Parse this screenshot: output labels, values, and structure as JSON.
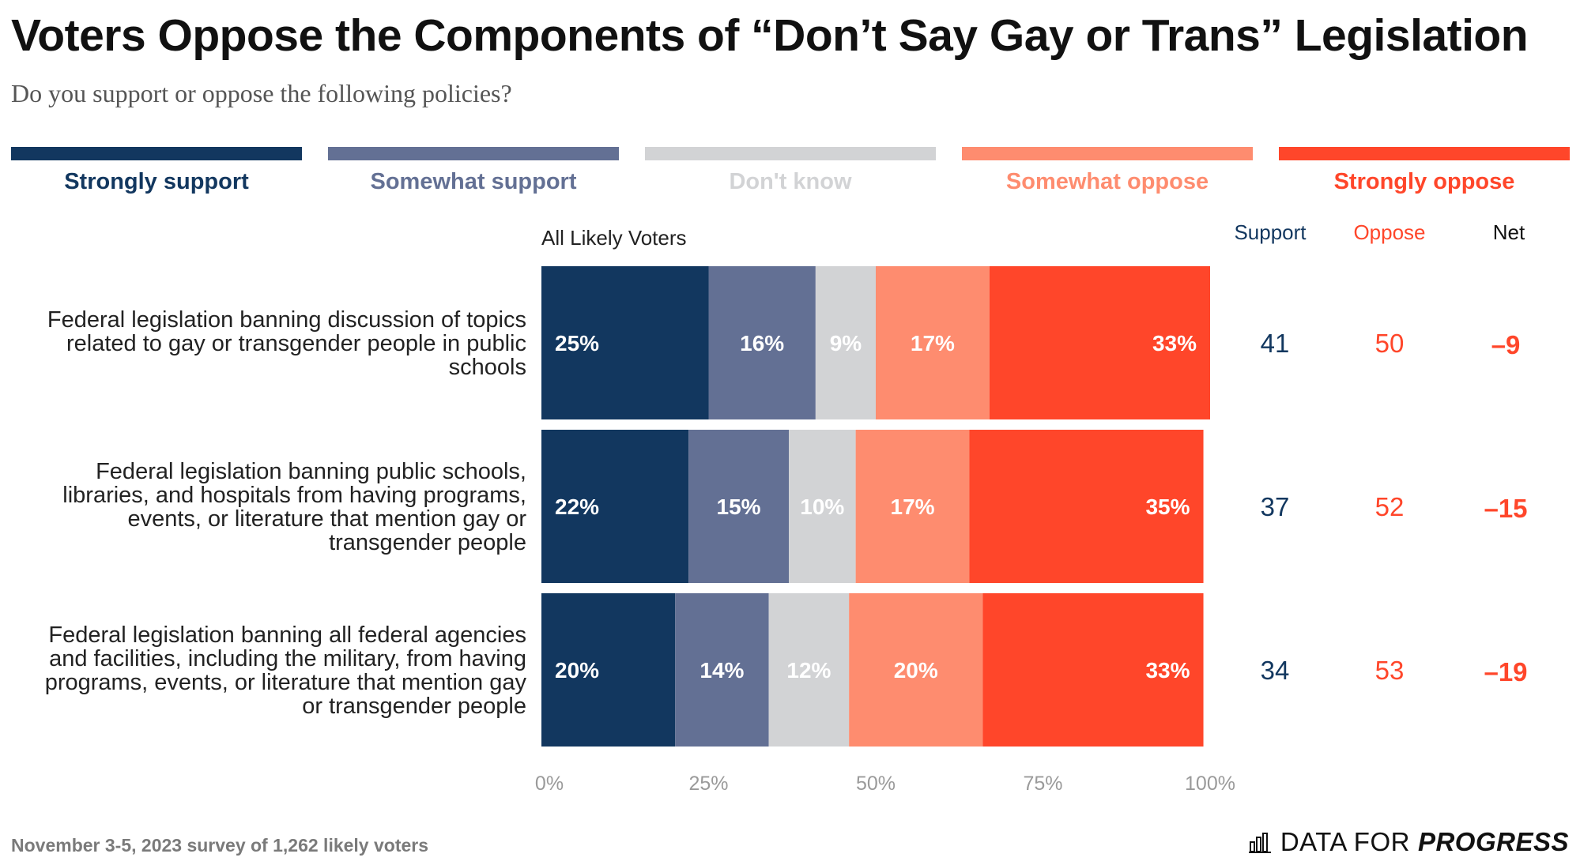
{
  "header": {
    "title": "Voters Oppose the Components of “Don’t Say Gay or Trans” Legislation",
    "subtitle": "Do you support or oppose the following policies?"
  },
  "legend": [
    {
      "label": "Strongly support",
      "color": "#12375f",
      "text_color": "#12375f"
    },
    {
      "label": "Somewhat support",
      "color": "#637094",
      "text_color": "#637094"
    },
    {
      "label": "Don't know",
      "color": "#d2d3d5",
      "text_color": "#d2d3d5"
    },
    {
      "label": "Somewhat oppose",
      "color": "#fe8c6f",
      "text_color": "#fe8c6f"
    },
    {
      "label": "Strongly oppose",
      "color": "#ff462a",
      "text_color": "#ff462a"
    }
  ],
  "chart_data": {
    "type": "bar",
    "orientation": "horizontal",
    "stacked": true,
    "group_label": "All Likely Voters",
    "categories": [
      "Federal legislation banning discussion of topics related to gay or transgender people in public schools",
      "Federal legislation banning public schools, libraries, and hospitals from having programs, events, or literature that mention gay or transgender people",
      "Federal legislation banning all federal agencies and facilities, including the military, from having programs, events, or literature that mention gay or transgender people"
    ],
    "category_lines": [
      [
        "Federal legislation banning discussion of topics",
        "related to gay or transgender people in public",
        "schools"
      ],
      [
        "Federal legislation banning public schools,",
        "libraries, and hospitals from having programs,",
        "events, or literature that mention gay or",
        "transgender people"
      ],
      [
        "Federal legislation banning all federal agencies",
        "and facilities, including the military, from having",
        "programs, events, or literature that mention gay",
        "or transgender people"
      ]
    ],
    "series": [
      {
        "name": "Strongly support",
        "values": [
          25,
          22,
          20
        ],
        "labels": [
          "25%",
          "22%",
          "20%"
        ]
      },
      {
        "name": "Somewhat support",
        "values": [
          16,
          15,
          14
        ],
        "labels": [
          "16%",
          "15%",
          "14%"
        ]
      },
      {
        "name": "Don't know",
        "values": [
          9,
          10,
          12
        ],
        "labels": [
          "9%",
          "10%",
          "12%"
        ]
      },
      {
        "name": "Somewhat oppose",
        "values": [
          17,
          17,
          20
        ],
        "labels": [
          "17%",
          "17%",
          "20%"
        ]
      },
      {
        "name": "Strongly oppose",
        "values": [
          33,
          35,
          33
        ],
        "labels": [
          "33%",
          "35%",
          "33%"
        ]
      }
    ],
    "xlim": [
      0,
      100
    ],
    "x_ticks": [
      "0%",
      "25%",
      "50%",
      "75%",
      "100%"
    ],
    "summary_columns": {
      "support": {
        "label": "Support",
        "values": [
          "41",
          "37",
          "34"
        ],
        "color": "#12375f"
      },
      "oppose": {
        "label": "Oppose",
        "values": [
          "50",
          "52",
          "53"
        ],
        "color": "#ff462a"
      },
      "net": {
        "label": "Net",
        "values": [
          "–9",
          "–15",
          "–19"
        ],
        "header_color": "#111111",
        "color": "#ff462a"
      }
    },
    "legend_position": "top",
    "grid": false
  },
  "footer": {
    "note": "November 3-5, 2023 survey of 1,262 likely voters",
    "brand_prefix": "DATA FOR",
    "brand_accent": "PROGRESS"
  }
}
